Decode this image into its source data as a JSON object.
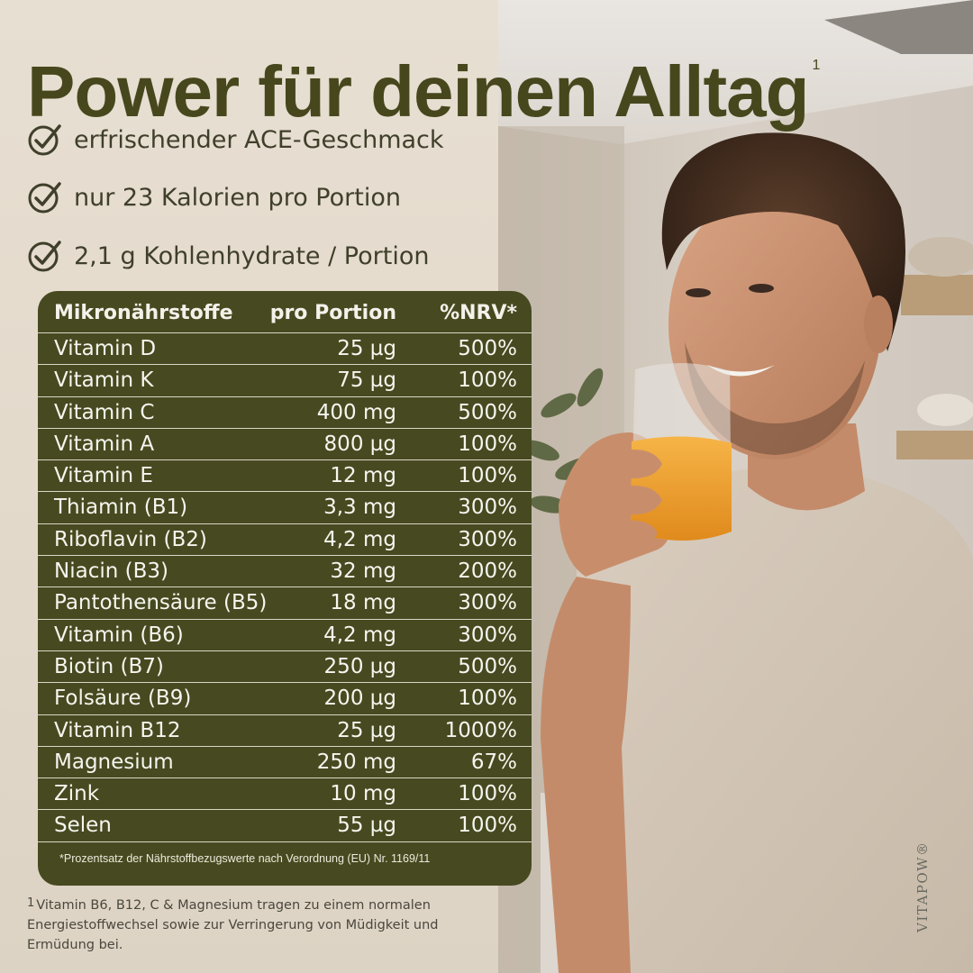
{
  "headline": {
    "text": "Power für deinen Alltag",
    "sup": "1"
  },
  "bullets": [
    {
      "icon": "check-circle-icon",
      "text": "erfrischender ACE-Geschmack"
    },
    {
      "icon": "check-circle-icon",
      "text": "nur 23 Kalorien pro Portion"
    },
    {
      "icon": "check-circle-icon",
      "text": "2,1 g Kohlenhydrate / Portion"
    }
  ],
  "table": {
    "headers": [
      "Mikronährstoffe",
      "pro Portion",
      "%NRV*"
    ],
    "rows": [
      [
        "Vitamin D",
        "25 µg",
        "500%"
      ],
      [
        "Vitamin K",
        "75 µg",
        "100%"
      ],
      [
        "Vitamin C",
        "400 mg",
        "500%"
      ],
      [
        "Vitamin A",
        "800 µg",
        "100%"
      ],
      [
        "Vitamin E",
        "12 mg",
        "100%"
      ],
      [
        "Thiamin (B1)",
        "3,3 mg",
        "300%"
      ],
      [
        "Riboflavin (B2)",
        "4,2 mg",
        "300%"
      ],
      [
        "Niacin (B3)",
        "32 mg",
        "200%"
      ],
      [
        "Pantothensäure (B5)",
        "18 mg",
        "300%"
      ],
      [
        "Vitamin (B6)",
        "4,2 mg",
        "300%"
      ],
      [
        "Biotin (B7)",
        "250 µg",
        "500%"
      ],
      [
        "Folsäure (B9)",
        "200 µg",
        "100%"
      ],
      [
        "Vitamin B12",
        "25 µg",
        "1000%"
      ],
      [
        "Magnesium",
        "250 mg",
        "67%"
      ],
      [
        "Zink",
        "10 mg",
        "100%"
      ],
      [
        "Selen",
        "55 µg",
        "100%"
      ]
    ],
    "footnote": "*Prozentsatz der Nährstoffbezugswerte nach Verordnung (EU) Nr. 1169/11"
  },
  "footnote": {
    "marker": "1",
    "text": "Vitamin B6, B12, C & Magnesium tragen zu einem normalen Energiestoffwechsel sowie zur Verringerung von Müdigkeit und Ermüdung bei."
  },
  "brand": "VITAPOW®",
  "colors": {
    "headline": "#47471d",
    "table_bg": "#474a20",
    "panel_bg": "#e6ddd0",
    "juice": "#f1a12d"
  }
}
